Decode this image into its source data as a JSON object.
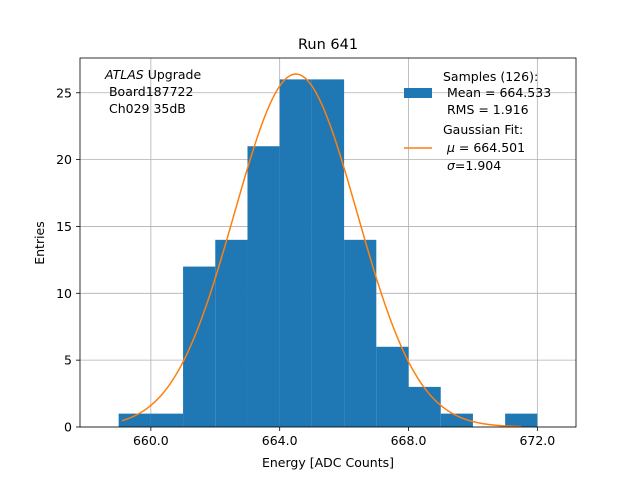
{
  "chart_data": {
    "type": "bar",
    "title": "Run 641",
    "xlabel": "Energy [ADC Counts]",
    "ylabel": "Entries",
    "xlim": [
      657.8,
      673.2
    ],
    "ylim": [
      0,
      27.6
    ],
    "xticks": [
      660,
      664,
      668,
      672
    ],
    "xtick_labels": [
      "660.0",
      "664.0",
      "668.0",
      "672.0"
    ],
    "yticks": [
      0,
      5,
      10,
      15,
      20,
      25
    ],
    "ytick_labels": [
      "0",
      "5",
      "10",
      "15",
      "20",
      "25"
    ],
    "grid": true,
    "bin_edges": [
      659,
      660,
      661,
      662,
      663,
      664,
      665,
      666,
      667,
      668,
      669,
      670,
      671,
      672
    ],
    "values": [
      1,
      1,
      12,
      14,
      21,
      26,
      26,
      14,
      6,
      3,
      1,
      0,
      1
    ],
    "bar_color": "#1f77b4",
    "fit": {
      "mu": 664.501,
      "sigma": 1.904,
      "amplitude": 26.4,
      "x_range": [
        659.1,
        671.5
      ],
      "color": "#ff7f0e"
    },
    "annotation": {
      "italic": "ATLAS",
      "rest": " Upgrade",
      "line2": " Board187722",
      "line3": " Ch029 35dB"
    },
    "legend": {
      "placement": "top-right",
      "samples_title": "Samples (126):",
      "samples_mean": " Mean = 664.533",
      "samples_rms": " RMS = 1.916",
      "fit_title": "Gaussian Fit:",
      "fit_mu_symbol": "μ",
      "fit_mu_value": " = 664.501",
      "fit_sigma_symbol": "σ",
      "fit_sigma_value": "=1.904"
    }
  }
}
